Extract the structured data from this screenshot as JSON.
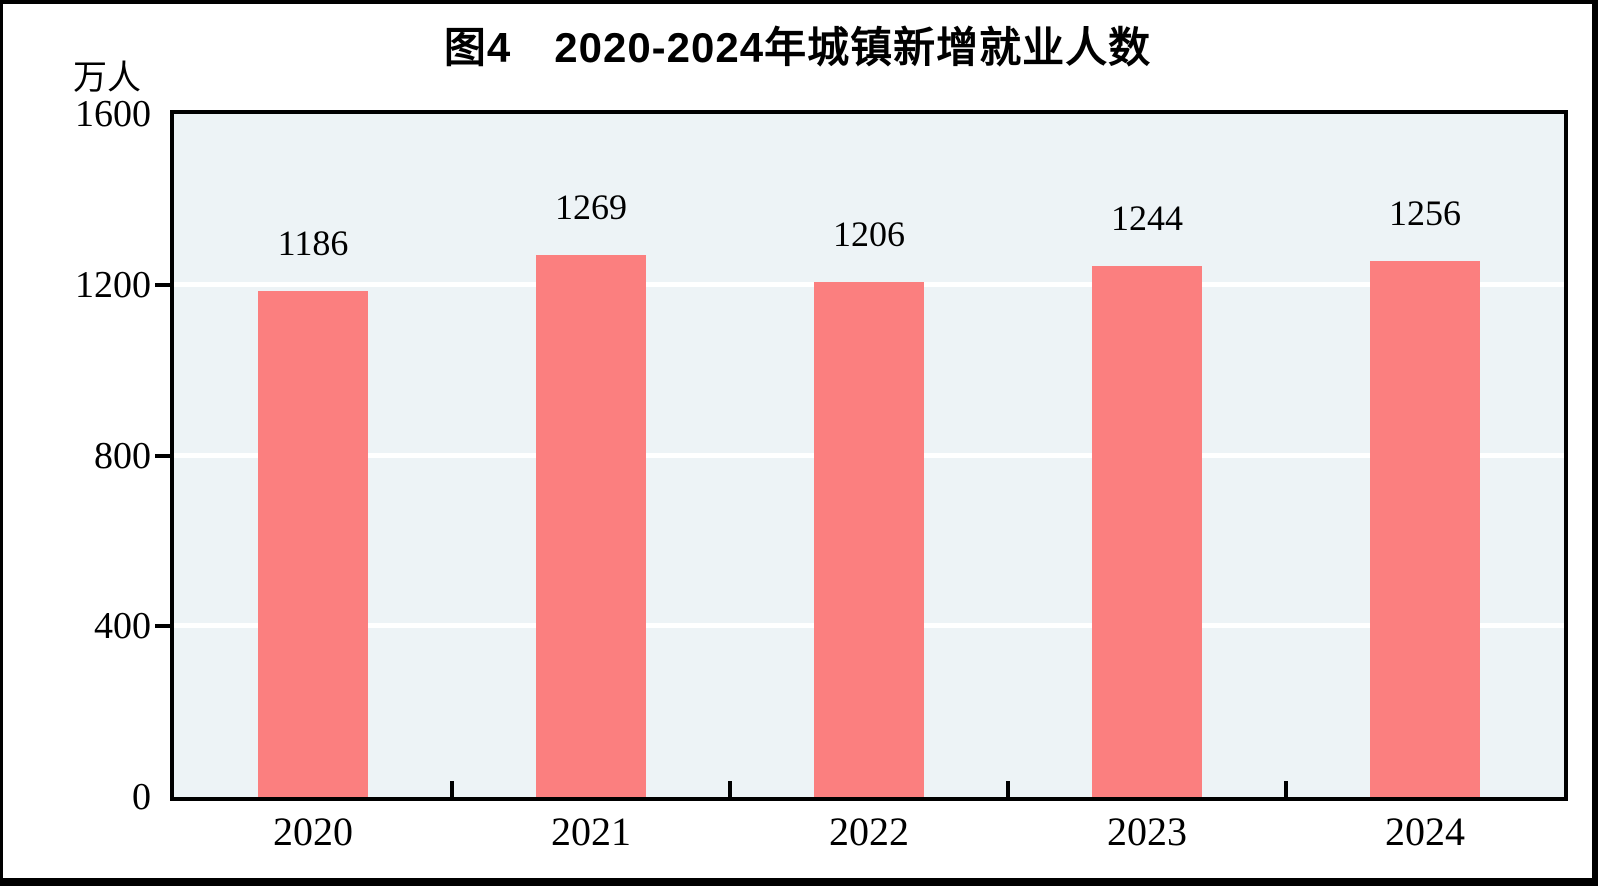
{
  "figure": {
    "title": "图4　2020-2024年城镇新增就业人数",
    "unit_label": "万人"
  },
  "chart_data": {
    "type": "bar",
    "title": "图4　2020-2024年城镇新增就业人数",
    "ylabel": "万人",
    "xlabel": "",
    "categories": [
      "2020",
      "2021",
      "2022",
      "2023",
      "2024"
    ],
    "values": [
      1186,
      1269,
      1206,
      1244,
      1256
    ],
    "ylim": [
      0,
      1600
    ],
    "yticks": [
      0,
      400,
      800,
      1200,
      1600
    ],
    "grid": "horizontal",
    "legend_position": "none",
    "colors": {
      "bar_fill": "#fb7f7f",
      "plot_background": "#edf3f6",
      "gridline": "#ffffff",
      "axis_and_text": "#000000",
      "page_background": "#ffffff"
    }
  }
}
